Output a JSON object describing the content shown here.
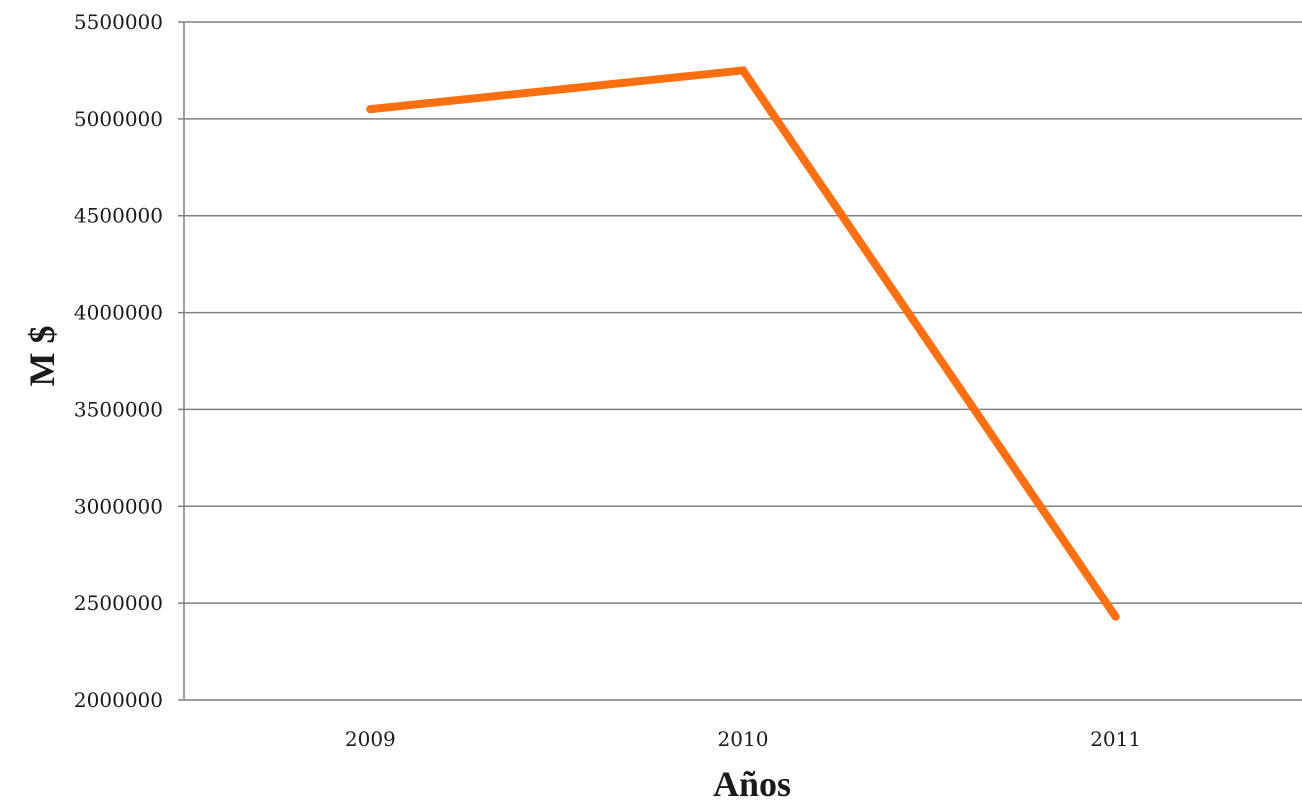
{
  "chart_data": {
    "type": "line",
    "title": "",
    "xlabel": "Años",
    "ylabel": "M $",
    "categories": [
      "2009",
      "2010",
      "2011"
    ],
    "series": [
      {
        "values": [
          5050000,
          5250000,
          2430000
        ],
        "color": "#ff6f0f"
      }
    ],
    "ylim": [
      2000000,
      5500000
    ],
    "yticks": [
      "2000000",
      "2500000",
      "3000000",
      "3500000",
      "4000000",
      "4500000",
      "5000000",
      "5500000"
    ],
    "grid": true,
    "legend": "none"
  }
}
